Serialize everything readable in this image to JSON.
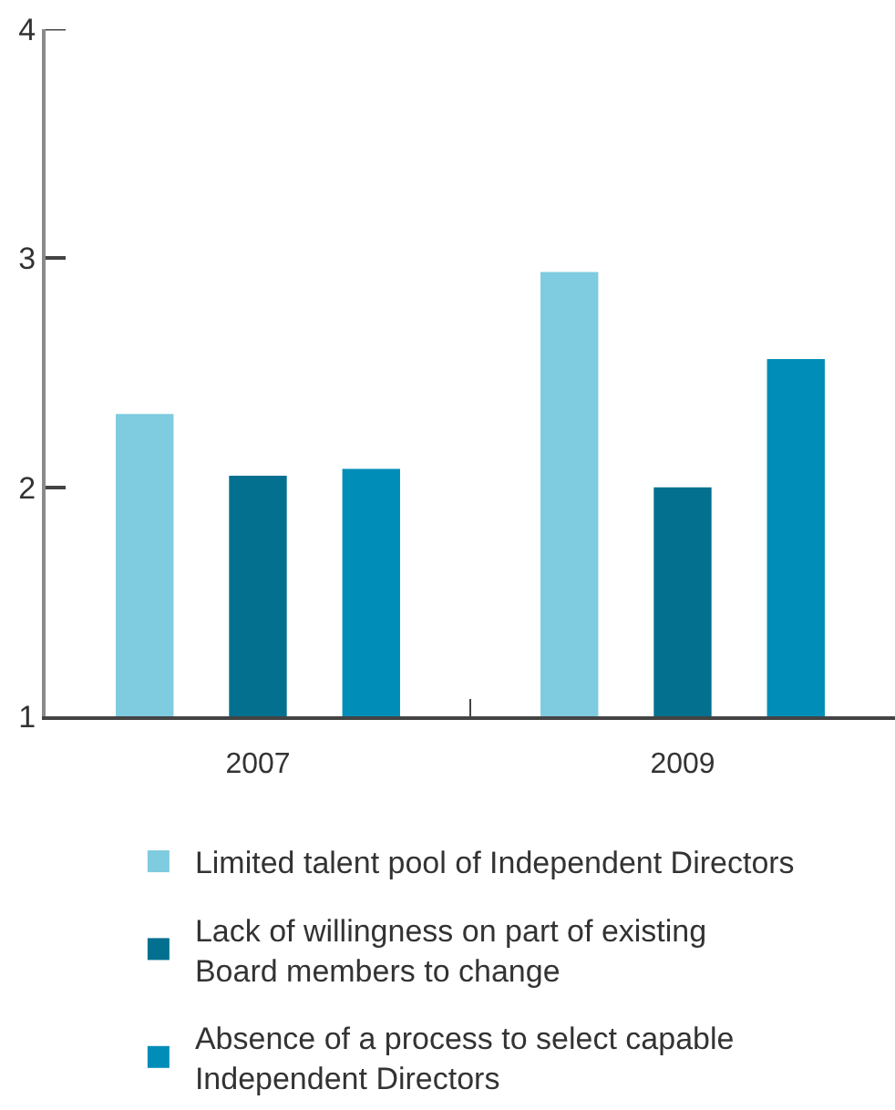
{
  "chart_data": {
    "type": "bar",
    "categories": [
      "2007",
      "2009"
    ],
    "series": [
      {
        "name": "Limited talent pool of Independent Directors",
        "color": "#7fcbdf",
        "values": [
          2.32,
          2.94
        ]
      },
      {
        "name": "Lack of willingness on part of existing Board members to change",
        "color": "#03708f",
        "values": [
          2.05,
          2.0
        ]
      },
      {
        "name": "Absence of a process to select capable Independent Directors",
        "color": "#008db8",
        "values": [
          2.08,
          2.56
        ]
      }
    ],
    "ylim": [
      1,
      4
    ],
    "yticks": [
      1,
      2,
      3,
      4
    ],
    "legend": "bottom"
  }
}
